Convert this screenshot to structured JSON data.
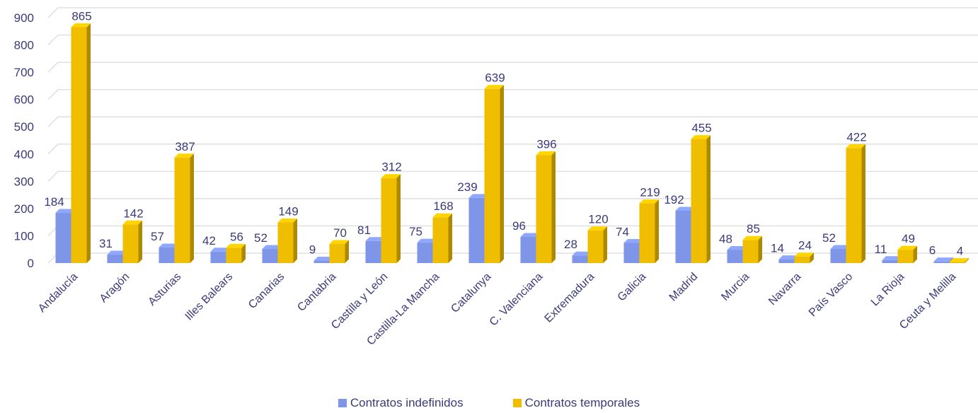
{
  "chart_data": {
    "type": "bar",
    "categories": [
      "Andalucía",
      "Aragón",
      "Asturias",
      "Illes Balears",
      "Canarias",
      "Cantabria",
      "Castilla y León",
      "Castilla-La Mancha",
      "Catalunya",
      "C. Valenciana",
      "Extremadura",
      "Galicia",
      "Madrid",
      "Murcia",
      "Navarra",
      "País Vasco",
      "La Rioja",
      "Ceuta y Melilla"
    ],
    "series": [
      {
        "name": "Contratos indefinidos",
        "values": [
          184,
          31,
          57,
          42,
          52,
          9,
          81,
          75,
          239,
          96,
          28,
          74,
          192,
          48,
          14,
          52,
          11,
          6
        ],
        "color": "#7f96e8"
      },
      {
        "name": "Contratos temporales",
        "values": [
          865,
          142,
          387,
          56,
          149,
          70,
          312,
          168,
          639,
          396,
          120,
          219,
          455,
          85,
          24,
          422,
          49,
          4
        ],
        "color": "#f0be00"
      }
    ],
    "ylim": [
      0,
      900
    ],
    "yticks": [
      0,
      100,
      200,
      300,
      400,
      500,
      600,
      700,
      800,
      900
    ],
    "grid": true,
    "legend": "bottom"
  }
}
